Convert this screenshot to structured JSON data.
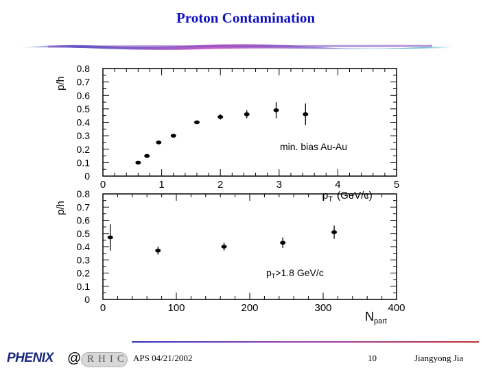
{
  "slide": {
    "title": "Proton Contamination",
    "footer_date": "APS 04/21/2002",
    "footer_page": "10",
    "footer_author": "Jiangyong Jia",
    "logo_left": "PHENIX",
    "logo_at": "@",
    "logo_right": "RHIC"
  },
  "colors": {
    "title": "#1010c0",
    "title_bar_left": "#3040c0",
    "title_bar_center": "#c040c0",
    "title_bar_right": "#40b0c0"
  },
  "chart_data": [
    {
      "type": "scatter",
      "ylabel": "p/h",
      "xlabel": "p_T (GeV/c)",
      "xlabel_main": "p",
      "xlabel_sub": "T",
      "xlabel_unit": "(GeV/c)",
      "annotation": "min. bias Au-Au",
      "xlim": [
        0,
        5
      ],
      "ylim": [
        0,
        0.8
      ],
      "xticks": [
        "0",
        "1",
        "2",
        "3",
        "4",
        "5"
      ],
      "yticks": [
        "0",
        "0.1",
        "0.2",
        "0.3",
        "0.4",
        "0.5",
        "0.6",
        "0.7",
        "0.8"
      ],
      "points": [
        {
          "x": 0.6,
          "y": 0.1,
          "err": 0.005
        },
        {
          "x": 0.75,
          "y": 0.15,
          "err": 0.005
        },
        {
          "x": 0.95,
          "y": 0.25,
          "err": 0.005
        },
        {
          "x": 1.2,
          "y": 0.3,
          "err": 0.005
        },
        {
          "x": 1.6,
          "y": 0.4,
          "err": 0.01
        },
        {
          "x": 2.0,
          "y": 0.44,
          "err": 0.02
        },
        {
          "x": 2.45,
          "y": 0.46,
          "err": 0.03
        },
        {
          "x": 2.95,
          "y": 0.49,
          "err": 0.06
        },
        {
          "x": 3.45,
          "y": 0.46,
          "err": 0.08
        }
      ]
    },
    {
      "type": "scatter",
      "ylabel": "p/h",
      "xlabel": "N_part",
      "xlabel_main": "N",
      "xlabel_sub": "part",
      "annotation": "p_T>1.8 GeV/c",
      "annotation_main": "p",
      "annotation_sub": "T",
      "annotation_rest": ">1.8 GeV/c",
      "xlim": [
        0,
        400
      ],
      "ylim": [
        0,
        0.8
      ],
      "xticks": [
        "0",
        "100",
        "200",
        "300",
        "400"
      ],
      "yticks": [
        "0",
        "0.1",
        "0.2",
        "0.3",
        "0.4",
        "0.5",
        "0.6",
        "0.7",
        "0.8"
      ],
      "points": [
        {
          "x": 10,
          "y": 0.47,
          "err": 0.1
        },
        {
          "x": 75,
          "y": 0.37,
          "err": 0.03
        },
        {
          "x": 165,
          "y": 0.4,
          "err": 0.03
        },
        {
          "x": 245,
          "y": 0.43,
          "err": 0.04
        },
        {
          "x": 315,
          "y": 0.51,
          "err": 0.05
        }
      ]
    }
  ]
}
